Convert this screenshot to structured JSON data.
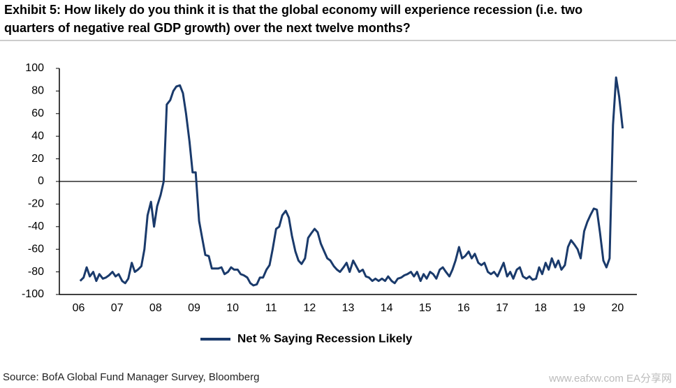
{
  "chart_data": {
    "type": "line",
    "title": "Exhibit 5: How likely do you think it is that the global economy will experience recession (i.e. two",
    "title_line2": "quarters of negative real GDP growth) over the next twelve months?",
    "source": "Source: BofA Global Fund Manager Survey, Bloomberg",
    "watermark": "www.eafxw.com  EA分享网",
    "xlim": [
      6,
      21
    ],
    "xticks": [
      {
        "value": 6.5,
        "label": "06"
      },
      {
        "value": 7.5,
        "label": "07"
      },
      {
        "value": 8.5,
        "label": "08"
      },
      {
        "value": 9.5,
        "label": "09"
      },
      {
        "value": 10.5,
        "label": "10"
      },
      {
        "value": 11.5,
        "label": "11"
      },
      {
        "value": 12.5,
        "label": "12"
      },
      {
        "value": 13.5,
        "label": "13"
      },
      {
        "value": 14.5,
        "label": "14"
      },
      {
        "value": 15.5,
        "label": "15"
      },
      {
        "value": 16.5,
        "label": "16"
      },
      {
        "value": 17.5,
        "label": "17"
      },
      {
        "value": 18.5,
        "label": "18"
      },
      {
        "value": 19.5,
        "label": "19"
      },
      {
        "value": 20.5,
        "label": "20"
      }
    ],
    "ylim": [
      -100,
      100
    ],
    "yticks": [
      -100,
      -80,
      -60,
      -40,
      -20,
      0,
      20,
      40,
      60,
      80,
      100
    ],
    "zero_line": true,
    "x": [
      6.54,
      6.63,
      6.71,
      6.79,
      6.88,
      6.96,
      7.04,
      7.13,
      7.21,
      7.29,
      7.38,
      7.46,
      7.54,
      7.63,
      7.71,
      7.79,
      7.88,
      7.96,
      8.04,
      8.13,
      8.21,
      8.29,
      8.38,
      8.46,
      8.54,
      8.63,
      8.71,
      8.79,
      8.88,
      8.96,
      9.04,
      9.13,
      9.21,
      9.29,
      9.38,
      9.46,
      9.54,
      9.63,
      9.71,
      9.79,
      9.88,
      9.96,
      10.04,
      10.13,
      10.21,
      10.29,
      10.38,
      10.46,
      10.54,
      10.63,
      10.71,
      10.79,
      10.88,
      10.96,
      11.04,
      11.13,
      11.21,
      11.29,
      11.38,
      11.46,
      11.54,
      11.63,
      11.71,
      11.79,
      11.88,
      11.96,
      12.04,
      12.13,
      12.21,
      12.29,
      12.38,
      12.46,
      12.54,
      12.63,
      12.71,
      12.79,
      12.88,
      12.96,
      13.04,
      13.13,
      13.21,
      13.29,
      13.38,
      13.46,
      13.54,
      13.63,
      13.71,
      13.79,
      13.88,
      13.96,
      14.04,
      14.13,
      14.21,
      14.29,
      14.38,
      14.46,
      14.54,
      14.63,
      14.71,
      14.79,
      14.88,
      14.96,
      15.04,
      15.13,
      15.21,
      15.29,
      15.38,
      15.46,
      15.54,
      15.63,
      15.71,
      15.79,
      15.88,
      15.96,
      16.04,
      16.13,
      16.21,
      16.29,
      16.38,
      16.46,
      16.54,
      16.63,
      16.71,
      16.79,
      16.88,
      16.96,
      17.04,
      17.13,
      17.21,
      17.29,
      17.38,
      17.46,
      17.54,
      17.63,
      17.71,
      17.79,
      17.88,
      17.96,
      18.04,
      18.13,
      18.21,
      18.29,
      18.38,
      18.46,
      18.54,
      18.63,
      18.71,
      18.79,
      18.88,
      18.96,
      19.04,
      19.13,
      19.21,
      19.29,
      19.38,
      19.46,
      19.54,
      19.63,
      19.71,
      19.79,
      19.88,
      19.96,
      20.04,
      20.13,
      20.21,
      20.29,
      20.38,
      20.46,
      20.54,
      20.63
    ],
    "series": [
      {
        "name": "Net % Saying Recession Likely",
        "color": "#1a3a6b",
        "values": [
          -88,
          -85,
          -76,
          -84,
          -80,
          -88,
          -82,
          -86,
          -85,
          -83,
          -80,
          -84,
          -82,
          -88,
          -90,
          -86,
          -72,
          -80,
          -78,
          -75,
          -60,
          -30,
          -18,
          -40,
          -22,
          -12,
          0,
          68,
          72,
          80,
          84,
          85,
          78,
          60,
          35,
          8,
          8,
          -35,
          -50,
          -65,
          -66,
          -77,
          -77,
          -77,
          -76,
          -82,
          -80,
          -76,
          -78,
          -78,
          -82,
          -83,
          -85,
          -90,
          -92,
          -91,
          -85,
          -85,
          -78,
          -74,
          -60,
          -42,
          -40,
          -30,
          -26,
          -32,
          -48,
          -62,
          -70,
          -73,
          -68,
          -50,
          -46,
          -42,
          -45,
          -55,
          -62,
          -68,
          -70,
          -75,
          -78,
          -80,
          -76,
          -72,
          -80,
          -70,
          -75,
          -80,
          -78,
          -84,
          -85,
          -88,
          -86,
          -88,
          -86,
          -88,
          -84,
          -88,
          -90,
          -86,
          -85,
          -83,
          -82,
          -80,
          -84,
          -80,
          -88,
          -82,
          -86,
          -80,
          -82,
          -86,
          -78,
          -76,
          -80,
          -84,
          -78,
          -70,
          -58,
          -68,
          -66,
          -62,
          -68,
          -64,
          -72,
          -74,
          -72,
          -80,
          -82,
          -80,
          -84,
          -78,
          -72,
          -84,
          -80,
          -86,
          -78,
          -76,
          -84,
          -86,
          -84,
          -87,
          -86,
          -76,
          -82,
          -72,
          -78,
          -68,
          -76,
          -70,
          -78,
          -74,
          -58,
          -52,
          -56,
          -60,
          -68,
          -44,
          -36,
          -30,
          -24,
          -25,
          -45,
          -70,
          -76,
          -68,
          50,
          92,
          75,
          47
        ]
      }
    ]
  }
}
